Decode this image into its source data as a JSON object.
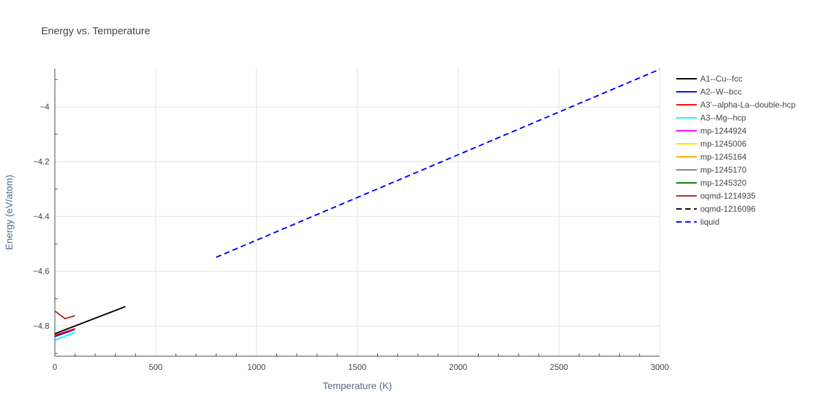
{
  "chart_data": {
    "type": "line",
    "title": "Energy vs. Temperature",
    "xlabel": "Temperature (K)",
    "ylabel": "Energy (eV/atom)",
    "xlim": [
      0,
      3000
    ],
    "ylim": [
      -4.91,
      -3.86
    ],
    "x_ticks": [
      0,
      500,
      1000,
      1500,
      2000,
      2500,
      3000
    ],
    "x_tick_labels": [
      "0",
      "500",
      "1000",
      "1500",
      "2000",
      "2500",
      "3000"
    ],
    "y_ticks": [
      -4.8,
      -4.6,
      -4.4,
      -4.2,
      -4.0
    ],
    "y_tick_labels": [
      "−4.8",
      "−4.6",
      "−4.4",
      "−4.2",
      "−4"
    ],
    "grid": true,
    "legend_position": "right",
    "series": [
      {
        "name": "A1--Cu--fcc",
        "color": "#000000",
        "dash": "solid",
        "x": [
          0,
          350
        ],
        "y": [
          -4.828,
          -4.729
        ]
      },
      {
        "name": "A2--W--bcc",
        "color": "#0000ff",
        "dash": "solid",
        "x": [
          0,
          100
        ],
        "y": [
          -4.838,
          -4.812
        ]
      },
      {
        "name": "A3'--alpha-La--double-hcp",
        "color": "#ff0000",
        "dash": "solid",
        "x": [
          0,
          100
        ],
        "y": [
          -4.834,
          -4.81
        ]
      },
      {
        "name": "A3--Mg--hcp",
        "color": "#00ffff",
        "dash": "solid",
        "x": [
          0,
          100
        ],
        "y": [
          -4.852,
          -4.822
        ]
      },
      {
        "name": "mp-1244924",
        "color": "#ff00ff",
        "dash": "solid",
        "x": [],
        "y": []
      },
      {
        "name": "mp-1245006",
        "color": "#ffd700",
        "dash": "solid",
        "x": [],
        "y": []
      },
      {
        "name": "mp-1245164",
        "color": "#ffa500",
        "dash": "solid",
        "x": [],
        "y": []
      },
      {
        "name": "mp-1245170",
        "color": "#808080",
        "dash": "solid",
        "x": [],
        "y": []
      },
      {
        "name": "mp-1245320",
        "color": "#008000",
        "dash": "solid",
        "x": [],
        "y": []
      },
      {
        "name": "oqmd-1214935",
        "color": "#a52a2a",
        "dash": "solid",
        "x": [
          0,
          50,
          100
        ],
        "y": [
          -4.745,
          -4.773,
          -4.762
        ]
      },
      {
        "name": "oqmd-1216096",
        "color": "#000000",
        "dash": "dash",
        "x": [],
        "y": []
      },
      {
        "name": "liquid",
        "color": "#0000ff",
        "dash": "dash",
        "x": [
          800,
          3000
        ],
        "y": [
          -4.549,
          -3.863
        ]
      }
    ]
  }
}
